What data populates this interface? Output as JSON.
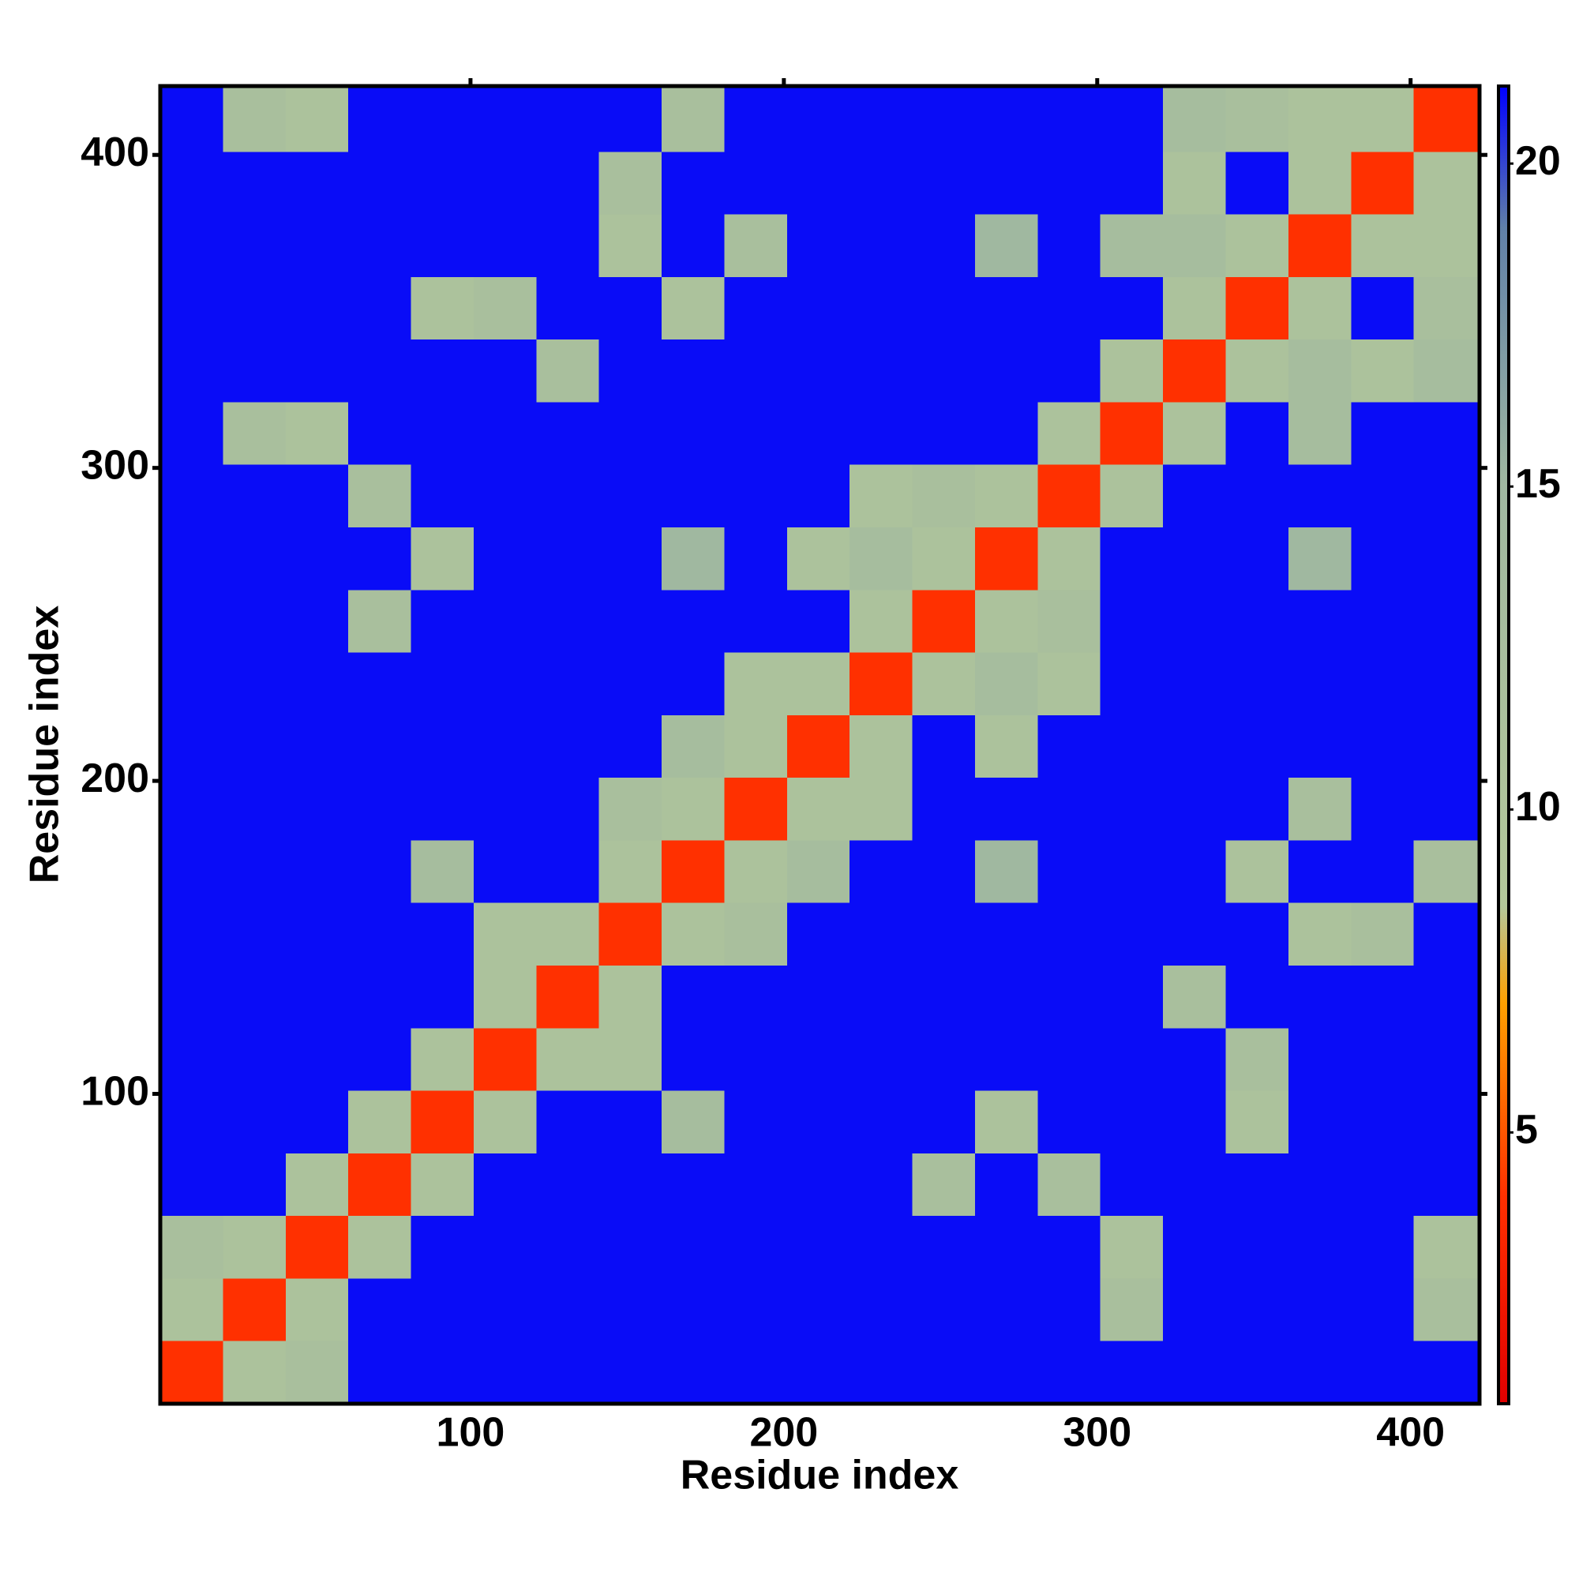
{
  "chart_data": {
    "type": "heatmap",
    "xlabel": "Residue index",
    "ylabel": "Residue index",
    "x_edges": [
      1,
      21,
      41,
      61,
      81,
      101,
      121,
      141,
      161,
      181,
      201,
      221,
      241,
      261,
      281,
      301,
      321,
      341,
      361,
      381,
      401,
      422
    ],
    "y_edges": [
      1,
      21,
      41,
      61,
      81,
      101,
      121,
      141,
      161,
      181,
      201,
      221,
      241,
      261,
      281,
      301,
      321,
      341,
      361,
      381,
      401,
      422
    ],
    "z": [
      [
        4,
        11,
        12,
        21,
        21,
        21,
        21,
        21,
        21,
        21,
        21,
        21,
        21,
        21,
        21,
        21,
        21,
        21,
        21,
        21,
        21
      ],
      [
        11,
        4,
        11,
        21,
        21,
        21,
        21,
        21,
        21,
        21,
        21,
        21,
        21,
        21,
        21,
        12,
        21,
        21,
        21,
        21,
        12
      ],
      [
        12,
        11,
        4,
        11,
        21,
        21,
        21,
        21,
        21,
        21,
        21,
        21,
        21,
        21,
        21,
        11,
        21,
        21,
        21,
        21,
        11
      ],
      [
        21,
        21,
        11,
        4,
        11,
        21,
        21,
        21,
        21,
        21,
        21,
        21,
        12,
        21,
        12,
        21,
        21,
        21,
        21,
        21,
        21
      ],
      [
        21,
        21,
        21,
        11,
        4,
        11,
        21,
        21,
        13,
        21,
        21,
        21,
        21,
        11,
        21,
        21,
        21,
        11,
        21,
        21,
        21
      ],
      [
        21,
        21,
        21,
        21,
        11,
        4,
        11,
        11,
        21,
        21,
        21,
        21,
        21,
        21,
        21,
        21,
        21,
        12,
        21,
        21,
        21
      ],
      [
        21,
        21,
        21,
        21,
        21,
        11,
        4,
        11,
        21,
        21,
        21,
        21,
        21,
        21,
        21,
        21,
        12,
        21,
        21,
        21,
        21
      ],
      [
        21,
        21,
        21,
        21,
        21,
        11,
        11,
        4,
        11,
        12,
        21,
        21,
        21,
        21,
        21,
        21,
        21,
        21,
        11,
        12,
        21
      ],
      [
        21,
        21,
        21,
        21,
        13,
        21,
        21,
        11,
        4,
        11,
        13,
        21,
        21,
        15,
        21,
        21,
        21,
        11,
        21,
        21,
        12
      ],
      [
        21,
        21,
        21,
        21,
        21,
        21,
        21,
        12,
        11,
        4,
        11,
        11,
        21,
        21,
        21,
        21,
        21,
        21,
        12,
        21,
        21
      ],
      [
        21,
        21,
        21,
        21,
        21,
        21,
        21,
        21,
        13,
        11,
        4,
        11,
        21,
        11,
        21,
        21,
        21,
        21,
        21,
        21,
        21
      ],
      [
        21,
        21,
        21,
        21,
        21,
        21,
        21,
        21,
        21,
        11,
        11,
        4,
        11,
        13,
        11,
        21,
        21,
        21,
        21,
        21,
        21
      ],
      [
        21,
        21,
        21,
        12,
        21,
        21,
        21,
        21,
        21,
        21,
        21,
        11,
        4,
        11,
        12,
        21,
        21,
        21,
        21,
        21,
        21
      ],
      [
        21,
        21,
        21,
        21,
        11,
        21,
        21,
        21,
        15,
        21,
        11,
        13,
        11,
        4,
        11,
        21,
        21,
        21,
        15,
        21,
        21
      ],
      [
        21,
        21,
        21,
        12,
        21,
        21,
        21,
        21,
        21,
        21,
        21,
        11,
        12,
        11,
        4,
        11,
        21,
        21,
        21,
        21,
        21
      ],
      [
        21,
        12,
        11,
        21,
        21,
        21,
        21,
        21,
        21,
        21,
        21,
        21,
        21,
        21,
        11,
        4,
        11,
        21,
        13,
        21,
        21
      ],
      [
        21,
        21,
        21,
        21,
        21,
        21,
        12,
        21,
        21,
        21,
        21,
        21,
        21,
        21,
        21,
        11,
        4,
        11,
        13,
        11,
        13
      ],
      [
        21,
        21,
        21,
        21,
        11,
        12,
        21,
        21,
        11,
        21,
        21,
        21,
        21,
        21,
        21,
        21,
        11,
        4,
        11,
        21,
        12
      ],
      [
        21,
        21,
        21,
        21,
        21,
        21,
        21,
        11,
        21,
        12,
        21,
        21,
        21,
        15,
        21,
        13,
        13,
        11,
        4,
        11,
        11
      ],
      [
        21,
        21,
        21,
        21,
        21,
        21,
        21,
        12,
        21,
        21,
        21,
        21,
        21,
        21,
        21,
        21,
        11,
        21,
        11,
        4,
        11
      ],
      [
        21,
        12,
        11,
        21,
        21,
        21,
        21,
        21,
        12,
        21,
        21,
        21,
        21,
        21,
        21,
        21,
        13,
        12,
        11,
        11,
        4
      ]
    ],
    "xlim": [
      1,
      422
    ],
    "ylim": [
      1,
      422
    ],
    "xticks": [
      100,
      200,
      300,
      400
    ],
    "yticks": [
      100,
      200,
      300,
      400
    ],
    "clim": [
      0.8,
      21.2
    ],
    "cticks": [
      5,
      10,
      15,
      20
    ],
    "colorscale": [
      [
        0.8,
        "#e00000"
      ],
      [
        4,
        "#ff3000"
      ],
      [
        7,
        "#ffa000"
      ],
      [
        8.5,
        "#b4c89a"
      ],
      [
        15,
        "#a0b8a0"
      ],
      [
        19,
        "#6080a8"
      ],
      [
        21.2,
        "#0000ff"
      ]
    ]
  }
}
